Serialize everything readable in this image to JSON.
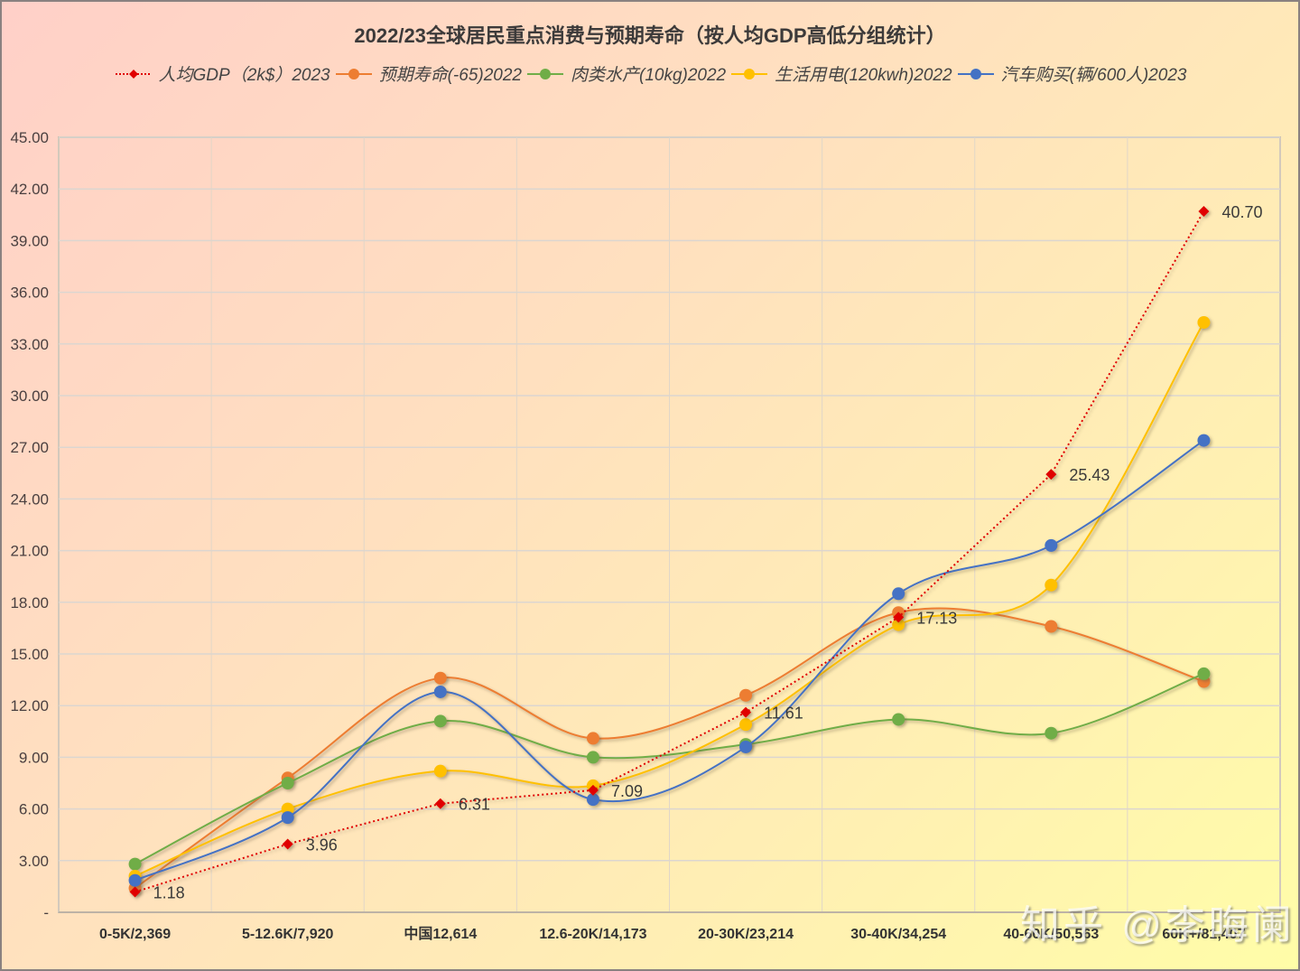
{
  "chart_data": {
    "type": "line",
    "title": "2022/23全球居民重点消费与预期寿命（按人均GDP高低分组统计）",
    "xlabel": "",
    "ylabel": "",
    "ylim": [
      0,
      45
    ],
    "yticks": [
      "-",
      "3.00",
      "6.00",
      "9.00",
      "12.00",
      "15.00",
      "18.00",
      "21.00",
      "24.00",
      "27.00",
      "30.00",
      "33.00",
      "36.00",
      "39.00",
      "42.00",
      "45.00"
    ],
    "grid": true,
    "legend_position": "top",
    "categories": [
      "0-5K/2,369",
      "5-12.6K/7,920",
      "中国12,614",
      "12.6-20K/14,173",
      "20-30K/23,214",
      "30-40K/34,254",
      "40-60K/50,563",
      "60K+/81,407"
    ],
    "series": [
      {
        "name": "人均GDP（2k$）2023",
        "color": "#e00000",
        "style": "dotted",
        "marker": "diamond",
        "smooth": false,
        "labels": true,
        "values": [
          1.18,
          3.96,
          6.31,
          7.09,
          11.61,
          17.13,
          25.43,
          40.7
        ]
      },
      {
        "name": "预期寿命(-65)2022",
        "color": "#ed7d31",
        "style": "solid",
        "marker": "circle",
        "smooth": true,
        "labels": false,
        "values": [
          1.4,
          7.8,
          13.6,
          10.1,
          12.6,
          17.4,
          16.6,
          13.4
        ]
      },
      {
        "name": "肉类水产(10kg)2022",
        "color": "#70ad47",
        "style": "solid",
        "marker": "circle",
        "smooth": true,
        "labels": false,
        "values": [
          2.8,
          7.5,
          11.1,
          9.0,
          9.75,
          11.2,
          10.4,
          13.85
        ]
      },
      {
        "name": "生活用电(120kwh)2022",
        "color": "#ffc000",
        "style": "solid",
        "marker": "circle",
        "smooth": true,
        "labels": false,
        "values": [
          2.1,
          6.0,
          8.2,
          7.35,
          10.9,
          16.7,
          19.0,
          34.25
        ]
      },
      {
        "name": "汽车购买(辆/600人)2023",
        "color": "#4472c4",
        "style": "solid",
        "marker": "circle",
        "smooth": true,
        "labels": false,
        "values": [
          1.85,
          5.5,
          12.8,
          6.55,
          9.6,
          18.5,
          21.3,
          27.4
        ]
      }
    ]
  },
  "watermark": "知乎 @李晦阑"
}
